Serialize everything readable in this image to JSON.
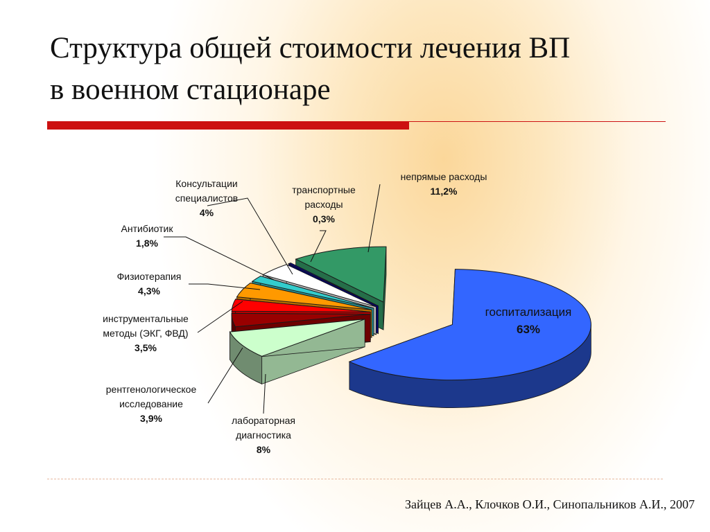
{
  "slide": {
    "title_line1": "Структура общей стоимости лечения ВП",
    "title_line2": "в военном стационаре",
    "citation": "Зайцев А.А., Клочков О.И., Синопальников А.И., 2007"
  },
  "chart_data": {
    "type": "pie",
    "title": "",
    "three_d": true,
    "slices": [
      {
        "label_lines": [
          "госпитализация"
        ],
        "value": 63,
        "value_label": "63%",
        "color": "#3366ff"
      },
      {
        "label_lines": [
          "лабораторная",
          "диагностика"
        ],
        "value": 8,
        "value_label": "8%",
        "color": "#ccffcc"
      },
      {
        "label_lines": [
          "рентгенологическое",
          "исследование"
        ],
        "value": 3.9,
        "value_label": "3,9%",
        "color": "#990000"
      },
      {
        "label_lines": [
          "инструментальные",
          "методы (ЭКГ, ФВД)"
        ],
        "value": 3.5,
        "value_label": "3,5%",
        "color": "#ff0000"
      },
      {
        "label_lines": [
          "Физиотерапия"
        ],
        "value": 4.3,
        "value_label": "4,3%",
        "color": "#ff9900"
      },
      {
        "label_lines": [
          "Антибиотик"
        ],
        "value": 1.8,
        "value_label": "1,8%",
        "color": "#33cccc"
      },
      {
        "label_lines": [
          "Консультации",
          "специалистов"
        ],
        "value": 4,
        "value_label": "4%",
        "color": "#ffffff"
      },
      {
        "label_lines": [
          "транспортные",
          "расходы"
        ],
        "value": 0.3,
        "value_label": "0,3%",
        "color": "#000099"
      },
      {
        "label_lines": [
          "непрямые расходы"
        ],
        "value": 11.2,
        "value_label": "11,2%",
        "color": "#339966"
      }
    ]
  }
}
